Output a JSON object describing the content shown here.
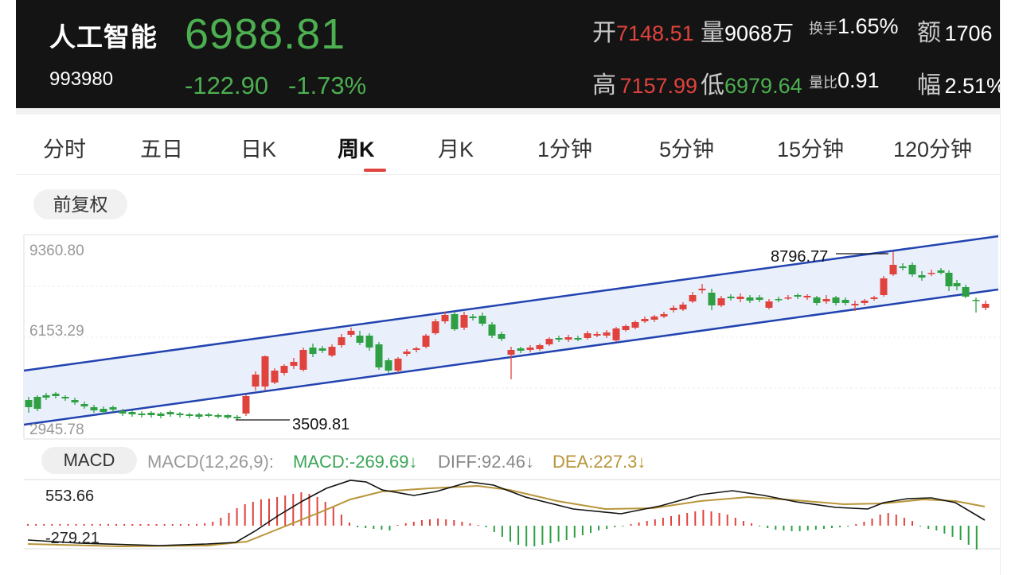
{
  "header": {
    "name": "人工智能",
    "code": "993980",
    "price": "6988.81",
    "change": "-122.90",
    "change_pct": "-1.73%",
    "open_label": "开",
    "open": "7148.51",
    "volume_label": "量",
    "volume": "9068万",
    "turnover_label": "换手",
    "turnover": "1.65%",
    "amount_label": "额",
    "amount": "1706",
    "high_label": "高",
    "high": "7157.99",
    "low_label": "低",
    "low": "6979.64",
    "vol_ratio_label": "量比",
    "vol_ratio": "0.91",
    "amplitude_label": "幅",
    "amplitude": "2.51%"
  },
  "tabs": [
    {
      "label": "分时"
    },
    {
      "label": "五日"
    },
    {
      "label": "日K"
    },
    {
      "label": "周K",
      "active": true
    },
    {
      "label": "月K"
    },
    {
      "label": "1分钟"
    },
    {
      "label": "5分钟"
    },
    {
      "label": "15分钟"
    },
    {
      "label": "120分钟"
    }
  ],
  "adjust_label": "前复权",
  "kline": {
    "axis_labels": [
      "9360.80",
      "6153.29",
      "2945.78"
    ],
    "high_marker": "8796.77",
    "low_marker": "3509.81",
    "colors": {
      "up": "#e0433d",
      "down": "#2ea043",
      "channel": "#2243b0",
      "fill": "#e9f0fb"
    }
  },
  "macd": {
    "chip": "MACD",
    "params": "MACD(12,26,9):",
    "macd": "MACD:-269.69↓",
    "diff": "DIFF:92.46↓",
    "dea": "DEA:227.3↓",
    "axis_top": "553.66",
    "axis_bottom": "-279.21",
    "colors": {
      "diff": "#111111",
      "dea": "#b8953a"
    }
  }
}
